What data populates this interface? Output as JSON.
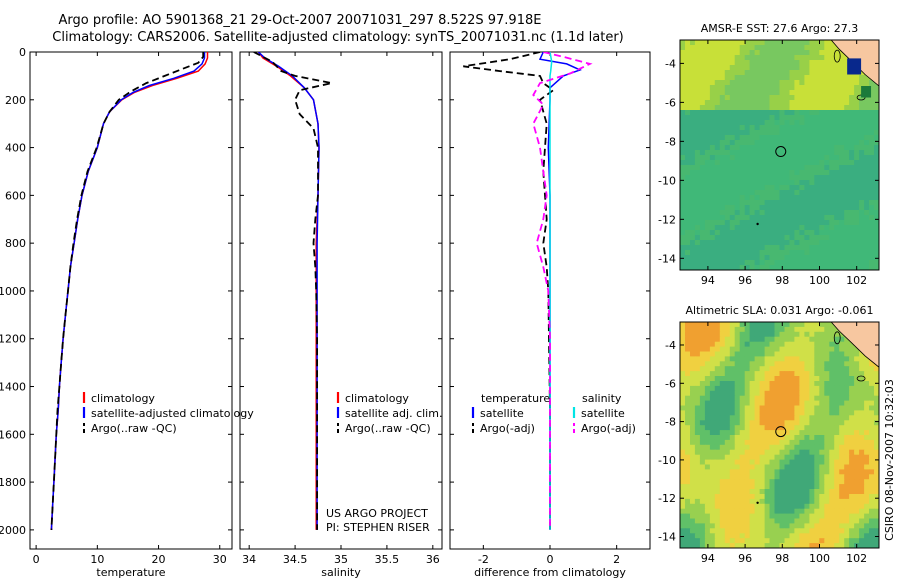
{
  "title_line1": "Argo profile: AO 5901368_21 29-Oct-2007 20071031_297 8.522S 97.918E",
  "title_line2": "Climatology: CARS2006. Satellite-adjusted climatology: synTS_20071031.nc (1.1d later)",
  "side_label": "CSIRO 08-Nov-2007 10:32:03",
  "colors": {
    "climatology": "#ff0000",
    "satellite": "#0000ff",
    "argo": "#000000",
    "satellite_diff": "#00e5e5",
    "argo_adj": "#ff00ff",
    "land": "#f7c7a0"
  },
  "chart_data": [
    {
      "type": "line",
      "id": "temperature",
      "xlabel": "temperature",
      "ylabel": "",
      "xlim": [
        -1,
        32
      ],
      "ylim": [
        2080,
        0
      ],
      "xticks": [
        0,
        10,
        20,
        30
      ],
      "xtick_labels": [
        "0",
        "10",
        "20",
        "30"
      ],
      "yticks": [
        0,
        200,
        400,
        600,
        800,
        1000,
        1200,
        1400,
        1600,
        1800,
        2000
      ],
      "ytick_labels": [
        "0",
        "200",
        "400",
        "600",
        "800",
        "1000",
        "1200",
        "1400",
        "1600",
        "1800",
        "2000"
      ],
      "legend": [
        "climatology",
        "satellite-adjusted climatology",
        "Argo(..raw -QC)"
      ],
      "legend_position": "lower-right",
      "series": [
        {
          "name": "climatology",
          "color": "#ff0000",
          "dash": "solid",
          "points": [
            [
              28,
              0
            ],
            [
              28,
              25
            ],
            [
              27.6,
              50
            ],
            [
              26.5,
              80
            ],
            [
              23,
              110
            ],
            [
              19,
              140
            ],
            [
              16,
              170
            ],
            [
              14,
              200
            ],
            [
              12,
              250
            ],
            [
              11,
              300
            ],
            [
              10,
              400
            ],
            [
              8.5,
              500
            ],
            [
              7.5,
              600
            ],
            [
              6.8,
              700
            ],
            [
              6.2,
              800
            ],
            [
              5.6,
              900
            ],
            [
              5.2,
              1000
            ],
            [
              4.8,
              1100
            ],
            [
              4.4,
              1200
            ],
            [
              4.1,
              1300
            ],
            [
              3.8,
              1400
            ],
            [
              3.6,
              1500
            ],
            [
              3.3,
              1600
            ],
            [
              3.1,
              1700
            ],
            [
              2.9,
              1800
            ],
            [
              2.7,
              1900
            ],
            [
              2.5,
              2000
            ]
          ]
        },
        {
          "name": "satellite-adjusted climatology",
          "color": "#0000ff",
          "dash": "solid",
          "points": [
            [
              27.5,
              0
            ],
            [
              27.5,
              25
            ],
            [
              27.1,
              50
            ],
            [
              25.8,
              80
            ],
            [
              22.5,
              110
            ],
            [
              18.5,
              140
            ],
            [
              15.8,
              170
            ],
            [
              13.9,
              200
            ],
            [
              12,
              250
            ],
            [
              11,
              300
            ],
            [
              10,
              400
            ],
            [
              8.5,
              500
            ],
            [
              7.5,
              600
            ],
            [
              6.8,
              700
            ],
            [
              6.2,
              800
            ],
            [
              5.6,
              900
            ],
            [
              5.2,
              1000
            ],
            [
              4.8,
              1100
            ],
            [
              4.4,
              1200
            ],
            [
              4.1,
              1300
            ],
            [
              3.8,
              1400
            ],
            [
              3.6,
              1500
            ],
            [
              3.3,
              1600
            ],
            [
              3.1,
              1700
            ],
            [
              2.9,
              1800
            ],
            [
              2.7,
              1900
            ],
            [
              2.5,
              2000
            ]
          ]
        },
        {
          "name": "Argo(..raw -QC)",
          "color": "#000000",
          "dash": "dashed",
          "points": [
            [
              27.3,
              0
            ],
            [
              27.3,
              20
            ],
            [
              26.5,
              45
            ],
            [
              24,
              70
            ],
            [
              21,
              100
            ],
            [
              18,
              130
            ],
            [
              15.5,
              165
            ],
            [
              13.5,
              200
            ],
            [
              12,
              250
            ],
            [
              11,
              300
            ],
            [
              9.9,
              400
            ],
            [
              8.4,
              500
            ],
            [
              7.4,
              600
            ],
            [
              6.7,
              700
            ],
            [
              6.1,
              800
            ],
            [
              5.6,
              900
            ],
            [
              5.2,
              1000
            ],
            [
              4.8,
              1100
            ],
            [
              4.4,
              1200
            ],
            [
              4.1,
              1300
            ],
            [
              3.8,
              1400
            ],
            [
              3.5,
              1500
            ],
            [
              3.3,
              1600
            ],
            [
              3.1,
              1700
            ],
            [
              2.9,
              1800
            ],
            [
              2.7,
              1900
            ],
            [
              2.5,
              2000
            ]
          ]
        }
      ]
    },
    {
      "type": "line",
      "id": "salinity",
      "xlabel": "salinity",
      "ylabel": "",
      "xlim": [
        33.9,
        36.1
      ],
      "ylim": [
        2080,
        0
      ],
      "xticks": [
        34,
        34.5,
        35,
        35.5,
        36
      ],
      "xtick_labels": [
        "34",
        "34.5",
        "35",
        "35.5",
        "36"
      ],
      "legend": [
        "climatology",
        "satellite adj. clim.",
        "Argo(..raw -QC)"
      ],
      "legend_position": "lower-right",
      "annotations": [
        "US ARGO PROJECT",
        "PI: STEPHEN RISER"
      ],
      "series": [
        {
          "name": "climatology",
          "color": "#ff0000",
          "dash": "solid",
          "points": [
            [
              34.1,
              0
            ],
            [
              34.15,
              25
            ],
            [
              34.3,
              60
            ],
            [
              34.45,
              100
            ],
            [
              34.6,
              150
            ],
            [
              34.7,
              200
            ],
            [
              34.75,
              300
            ],
            [
              34.76,
              400
            ],
            [
              34.75,
              600
            ],
            [
              34.73,
              800
            ],
            [
              34.73,
              1000
            ],
            [
              34.73,
              1200
            ],
            [
              34.73,
              1500
            ],
            [
              34.73,
              1700
            ],
            [
              34.73,
              1800
            ],
            [
              34.73,
              2000
            ]
          ]
        },
        {
          "name": "satellite adj. clim.",
          "color": "#0000ff",
          "dash": "solid",
          "points": [
            [
              34.1,
              0
            ],
            [
              34.17,
              25
            ],
            [
              34.32,
              60
            ],
            [
              34.47,
              100
            ],
            [
              34.6,
              150
            ],
            [
              34.7,
              200
            ],
            [
              34.75,
              300
            ],
            [
              34.76,
              400
            ],
            [
              34.75,
              600
            ],
            [
              34.74,
              800
            ],
            [
              34.74,
              1000
            ],
            [
              34.74,
              1200
            ],
            [
              34.74,
              1500
            ],
            [
              34.74,
              1800
            ],
            [
              34.74,
              2000
            ]
          ]
        },
        {
          "name": "Argo(..raw -QC)",
          "color": "#000000",
          "dash": "dashed",
          "points": [
            [
              34.05,
              0
            ],
            [
              34.25,
              40
            ],
            [
              34.35,
              80
            ],
            [
              34.5,
              100
            ],
            [
              34.9,
              130
            ],
            [
              34.55,
              160
            ],
            [
              34.5,
              200
            ],
            [
              34.55,
              260
            ],
            [
              34.7,
              320
            ],
            [
              34.75,
              400
            ],
            [
              34.75,
              600
            ],
            [
              34.72,
              700
            ],
            [
              34.7,
              800
            ],
            [
              34.72,
              900
            ],
            [
              34.73,
              1000
            ],
            [
              34.74,
              1200
            ],
            [
              34.74,
              1500
            ],
            [
              34.74,
              1800
            ],
            [
              34.74,
              2000
            ]
          ]
        }
      ]
    },
    {
      "type": "line",
      "id": "difference",
      "xlabel": "difference from climatology",
      "ylabel": "",
      "xlim": [
        -3,
        3
      ],
      "ylim": [
        2080,
        0
      ],
      "xticks": [
        -2,
        0,
        2
      ],
      "xtick_labels": [
        "-2",
        "0",
        "2"
      ],
      "legend_groups": [
        {
          "title": "temperature",
          "items": [
            "satellite",
            "Argo(-adj)"
          ]
        },
        {
          "title": "salinity",
          "items": [
            "satellite",
            "Argo(-adj)"
          ]
        }
      ],
      "series": [
        {
          "name": "temperature satellite",
          "color": "#0000ff",
          "dash": "solid",
          "points": [
            [
              -0.2,
              0
            ],
            [
              -0.3,
              30
            ],
            [
              0.5,
              50
            ],
            [
              0.9,
              75
            ],
            [
              0.4,
              100
            ],
            [
              0,
              150
            ],
            [
              0,
              200
            ],
            [
              -0.05,
              400
            ],
            [
              0,
              600
            ],
            [
              0,
              800
            ],
            [
              0,
              1000
            ],
            [
              0,
              1500
            ],
            [
              0,
              2000
            ]
          ]
        },
        {
          "name": "temperature Argo(-adj)",
          "color": "#000000",
          "dash": "dashed",
          "points": [
            [
              -0.3,
              0
            ],
            [
              -1.2,
              30
            ],
            [
              -2.6,
              60
            ],
            [
              -1.5,
              80
            ],
            [
              -0.3,
              100
            ],
            [
              -0.2,
              130
            ],
            [
              0.1,
              160
            ],
            [
              -0.3,
              200
            ],
            [
              -0.1,
              300
            ],
            [
              -0.2,
              500
            ],
            [
              -0.1,
              700
            ],
            [
              -0.2,
              800
            ],
            [
              -0.1,
              900
            ],
            [
              -0.05,
              1000
            ],
            [
              0,
              1500
            ],
            [
              0,
              2000
            ]
          ]
        },
        {
          "name": "salinity satellite",
          "color": "#00e5e5",
          "dash": "solid",
          "points": [
            [
              0,
              0
            ],
            [
              0.05,
              40
            ],
            [
              0.02,
              80
            ],
            [
              0,
              100
            ],
            [
              0,
              200
            ],
            [
              0,
              600
            ],
            [
              0,
              1000
            ],
            [
              0,
              1500
            ],
            [
              0,
              2000
            ]
          ]
        },
        {
          "name": "salinity Argo(-adj)",
          "color": "#ff00ff",
          "dash": "dashed",
          "points": [
            [
              -0.2,
              0
            ],
            [
              0.4,
              20
            ],
            [
              1.2,
              50
            ],
            [
              0.6,
              90
            ],
            [
              -0.3,
              130
            ],
            [
              -0.5,
              180
            ],
            [
              -0.2,
              220
            ],
            [
              -0.5,
              300
            ],
            [
              -0.3,
              400
            ],
            [
              -0.2,
              500
            ],
            [
              -0.1,
              600
            ],
            [
              -0.2,
              700
            ],
            [
              -0.4,
              800
            ],
            [
              -0.2,
              900
            ],
            [
              -0.05,
              1000
            ],
            [
              0,
              1200
            ],
            [
              0,
              2000
            ]
          ]
        }
      ]
    },
    {
      "type": "heatmap",
      "id": "sst_map",
      "title": "AMSR-E SST: 27.6 Argo: 27.3",
      "xlim": [
        92.5,
        103.2
      ],
      "ylim": [
        -14.6,
        -2.8
      ],
      "xticks": [
        94,
        96,
        98,
        100,
        102
      ],
      "xtick_labels": [
        "94",
        "96",
        "98",
        "100",
        "102"
      ],
      "yticks": [
        -4,
        -6,
        -8,
        -10,
        -12,
        -14
      ],
      "ytick_labels": [
        "-4",
        "-6",
        "-8",
        "-10",
        "-12",
        "-14"
      ],
      "marker": {
        "lon": 97.918,
        "lat": -8.522
      }
    },
    {
      "type": "heatmap",
      "id": "sla_map",
      "title": "Altimetric SLA: 0.031 Argo: -0.061",
      "xlim": [
        92.5,
        103.2
      ],
      "ylim": [
        -14.6,
        -2.8
      ],
      "xticks": [
        94,
        96,
        98,
        100,
        102
      ],
      "xtick_labels": [
        "94",
        "96",
        "98",
        "100",
        "102"
      ],
      "yticks": [
        -4,
        -6,
        -8,
        -10,
        -12,
        -14
      ],
      "ytick_labels": [
        "-4",
        "-6",
        "-8",
        "-10",
        "-12",
        "-14"
      ],
      "marker": {
        "lon": 97.918,
        "lat": -8.522
      }
    }
  ]
}
